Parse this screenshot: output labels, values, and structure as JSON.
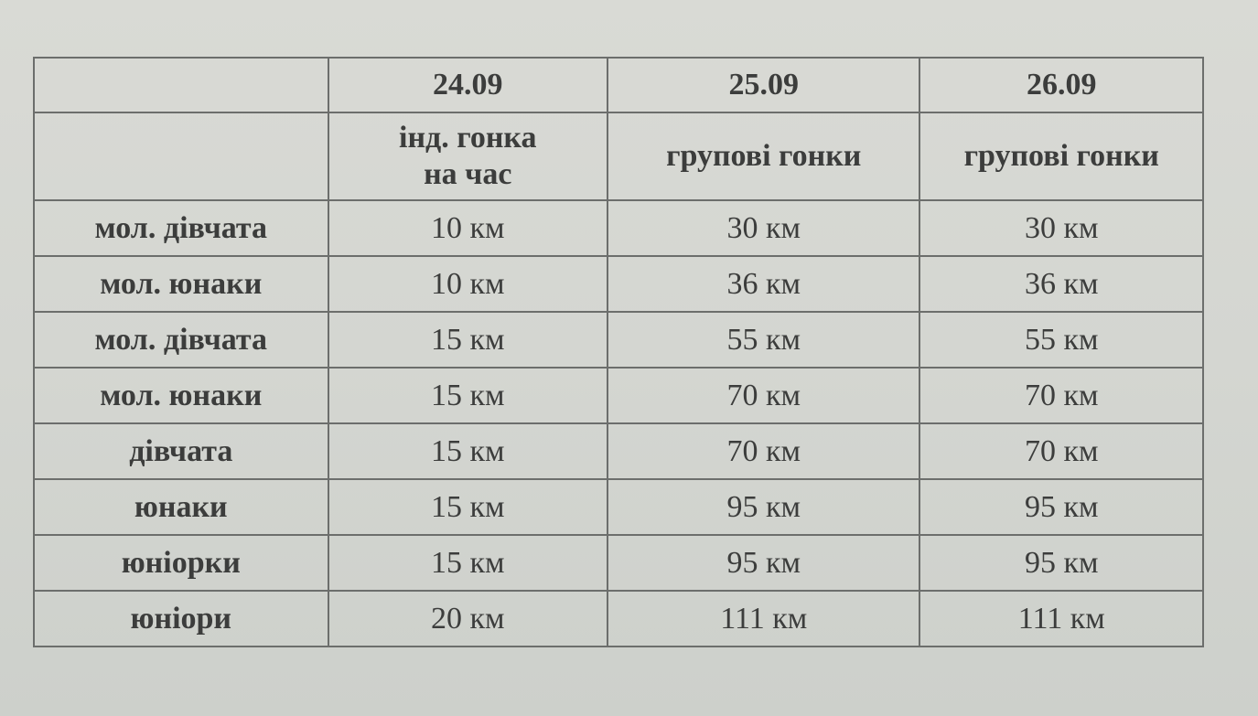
{
  "header": {
    "dates": [
      "24.09",
      "25.09",
      "26.09"
    ],
    "race_types": [
      "інд. гонка на час",
      "групові гонки",
      "групові гонки"
    ],
    "race_type_lines_0": [
      "інд. гонка",
      "на час"
    ]
  },
  "rows": [
    {
      "category": "мол. дівчата",
      "d1": "10 км",
      "d2": "30 км",
      "d3": "30 км"
    },
    {
      "category": "мол. юнаки",
      "d1": "10 км",
      "d2": "36 км",
      "d3": "36 км"
    },
    {
      "category": "мол. дівчата",
      "d1": "15 км",
      "d2": "55 км",
      "d3": "55 км"
    },
    {
      "category": "мол. юнаки",
      "d1": "15 км",
      "d2": "70 км",
      "d3": "70 км"
    },
    {
      "category": "дівчата",
      "d1": "15 км",
      "d2": "70 км",
      "d3": "70 км"
    },
    {
      "category": "юнаки",
      "d1": "15 км",
      "d2": "95 км",
      "d3": "95 км"
    },
    {
      "category": "юніорки",
      "d1": "15 км",
      "d2": "95 км",
      "d3": "95 км"
    },
    {
      "category": "юніори",
      "d1": "20 км",
      "d2": "111 км",
      "d3": "111 км"
    }
  ]
}
